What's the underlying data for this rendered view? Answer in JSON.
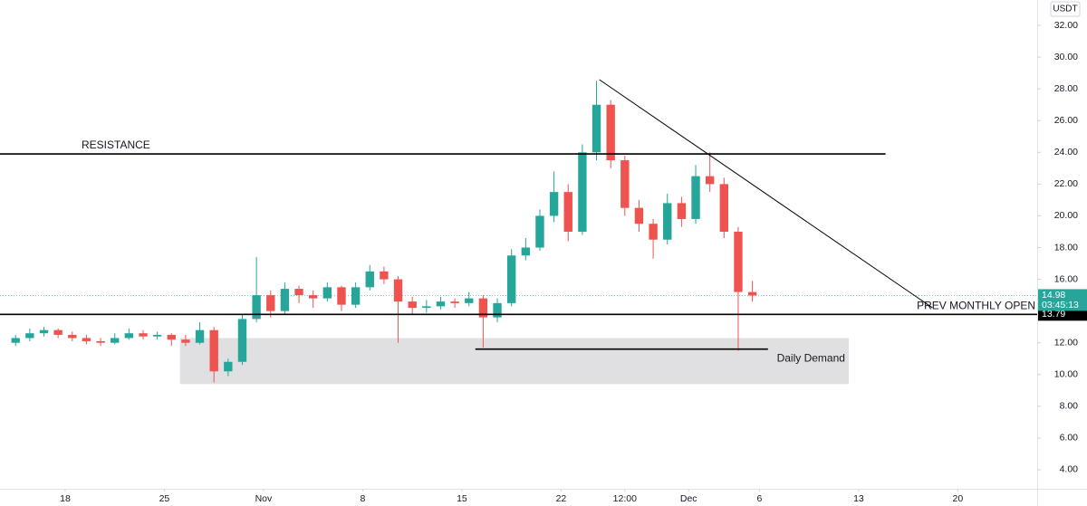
{
  "chart_data": {
    "type": "candlestick",
    "currency": "USDT",
    "up_color": "#26a69a",
    "down_color": "#ef5350",
    "x": [
      14.5,
      15.5,
      16.5,
      17.5,
      18.5,
      19.5,
      20.5,
      21.5,
      22.5,
      23.5,
      24.5,
      25.5,
      26.5,
      27.5,
      28.5,
      29.5,
      30.5,
      31.5,
      32.5,
      33.5,
      34.5,
      35.5,
      36.5,
      37.5,
      38.5,
      39.5,
      40.5,
      41.5,
      42.5,
      43.5,
      44.5,
      45.5,
      46.5,
      47.5,
      48.5,
      49.5,
      50.5,
      51.5,
      52.5,
      53.5,
      54.5,
      55.5,
      56.5,
      57.5,
      58.5,
      59.5,
      60.5,
      61.5,
      62.5,
      63.5,
      64.5,
      65.5,
      66.5
    ],
    "open": [
      12.0,
      12.3,
      12.6,
      12.8,
      12.5,
      12.3,
      12.1,
      12.0,
      12.3,
      12.6,
      12.4,
      12.5,
      12.2,
      12.0,
      12.8,
      10.2,
      10.8,
      13.5,
      15.0,
      14.0,
      15.4,
      15.0,
      14.8,
      15.5,
      14.4,
      15.5,
      16.5,
      16.0,
      14.6,
      14.2,
      14.3,
      14.6,
      14.5,
      14.8,
      13.6,
      14.5,
      17.5,
      18.0,
      20.0,
      21.5,
      19.0,
      24.0,
      27.0,
      23.5,
      20.5,
      19.5,
      18.5,
      20.8,
      19.8,
      22.5,
      22.0,
      19.0,
      15.2
    ],
    "high": [
      12.5,
      12.9,
      13.0,
      12.9,
      12.7,
      12.5,
      12.3,
      12.6,
      12.9,
      12.8,
      12.7,
      12.6,
      12.5,
      13.3,
      13.0,
      11.0,
      13.8,
      17.4,
      15.3,
      15.8,
      15.6,
      15.3,
      15.8,
      15.6,
      15.8,
      16.9,
      16.8,
      16.2,
      14.9,
      14.7,
      14.9,
      14.8,
      15.2,
      15.0,
      14.8,
      17.9,
      18.6,
      20.4,
      22.8,
      22.0,
      24.5,
      28.5,
      27.3,
      23.8,
      21.0,
      19.8,
      21.4,
      21.2,
      23.2,
      24.0,
      22.4,
      19.3,
      15.9
    ],
    "low": [
      11.8,
      12.1,
      12.4,
      12.3,
      12.1,
      11.9,
      11.8,
      11.9,
      12.2,
      12.2,
      12.2,
      11.8,
      11.8,
      11.9,
      9.5,
      9.9,
      10.6,
      13.3,
      13.6,
      13.8,
      14.5,
      14.2,
      14.6,
      14.0,
      14.2,
      15.3,
      15.7,
      12.0,
      13.8,
      13.9,
      14.1,
      14.2,
      14.3,
      11.7,
      13.3,
      14.3,
      17.2,
      17.8,
      19.6,
      18.4,
      18.8,
      23.5,
      23.0,
      20.0,
      19.0,
      17.3,
      18.2,
      19.3,
      19.5,
      21.5,
      18.6,
      11.5,
      14.6
    ],
    "close": [
      12.3,
      12.6,
      12.8,
      12.5,
      12.3,
      12.1,
      12.0,
      12.3,
      12.6,
      12.4,
      12.5,
      12.2,
      12.0,
      12.8,
      10.2,
      10.8,
      13.5,
      15.0,
      14.0,
      15.4,
      15.0,
      14.8,
      15.5,
      14.4,
      15.5,
      16.5,
      16.0,
      14.6,
      14.2,
      14.3,
      14.6,
      14.5,
      14.8,
      13.6,
      14.5,
      17.5,
      18.0,
      20.0,
      21.5,
      19.0,
      24.0,
      27.0,
      23.5,
      20.5,
      19.5,
      18.5,
      20.8,
      19.8,
      22.5,
      22.0,
      19.0,
      15.2,
      14.98
    ],
    "countdown": "03:45:13",
    "xlim": [
      13.4,
      86.6
    ],
    "xticks": [
      {
        "value": 18,
        "label": "18"
      },
      {
        "value": 25,
        "label": "25"
      },
      {
        "value": 32,
        "label": "Nov"
      },
      {
        "value": 39,
        "label": "8"
      },
      {
        "value": 46,
        "label": "15"
      },
      {
        "value": 53,
        "label": "22"
      },
      {
        "value": 57.5,
        "label": "12:00"
      },
      {
        "value": 62,
        "label": "Dec"
      },
      {
        "value": 67,
        "label": "6"
      },
      {
        "value": 74,
        "label": "13"
      },
      {
        "value": 81,
        "label": "20"
      }
    ],
    "ylim": [
      2.8,
      33.6
    ],
    "yticks": [
      {
        "value": 4,
        "label": "4.00"
      },
      {
        "value": 6,
        "label": "6.00"
      },
      {
        "value": 8,
        "label": "8.00"
      },
      {
        "value": 10,
        "label": "10.00"
      },
      {
        "value": 12,
        "label": "12.00"
      },
      {
        "value": 14,
        "label": "14.00"
      },
      {
        "value": 16,
        "label": "16.00"
      },
      {
        "value": 18,
        "label": "18.00"
      },
      {
        "value": 20,
        "label": "20.00"
      },
      {
        "value": 22,
        "label": "22.00"
      },
      {
        "value": 24,
        "label": "24.00"
      },
      {
        "value": 26,
        "label": "26.00"
      },
      {
        "value": 28,
        "label": "28.00"
      },
      {
        "value": 30,
        "label": "30.00"
      },
      {
        "value": 32,
        "label": "32.00"
      }
    ],
    "zones": [
      {
        "x": [
          26.1,
          73.3
        ],
        "y": [
          9.4,
          12.3
        ],
        "label": "Daily Demand"
      }
    ],
    "lines": [
      {
        "x": [
          13.4,
          75.9
        ],
        "y": [
          23.9,
          23.9
        ],
        "label": "RESISTANCE",
        "label_color": "#e0533c"
      },
      {
        "x": [
          13.4,
          86.6
        ],
        "y": [
          13.79,
          13.79
        ],
        "label": "PREV MONTHLY OPEN"
      },
      {
        "x": [
          46.95,
          67.6
        ],
        "y": [
          11.6,
          11.6
        ]
      },
      {
        "x": [
          55.7,
          79.2
        ],
        "y": [
          28.58,
          14.21
        ]
      }
    ]
  }
}
